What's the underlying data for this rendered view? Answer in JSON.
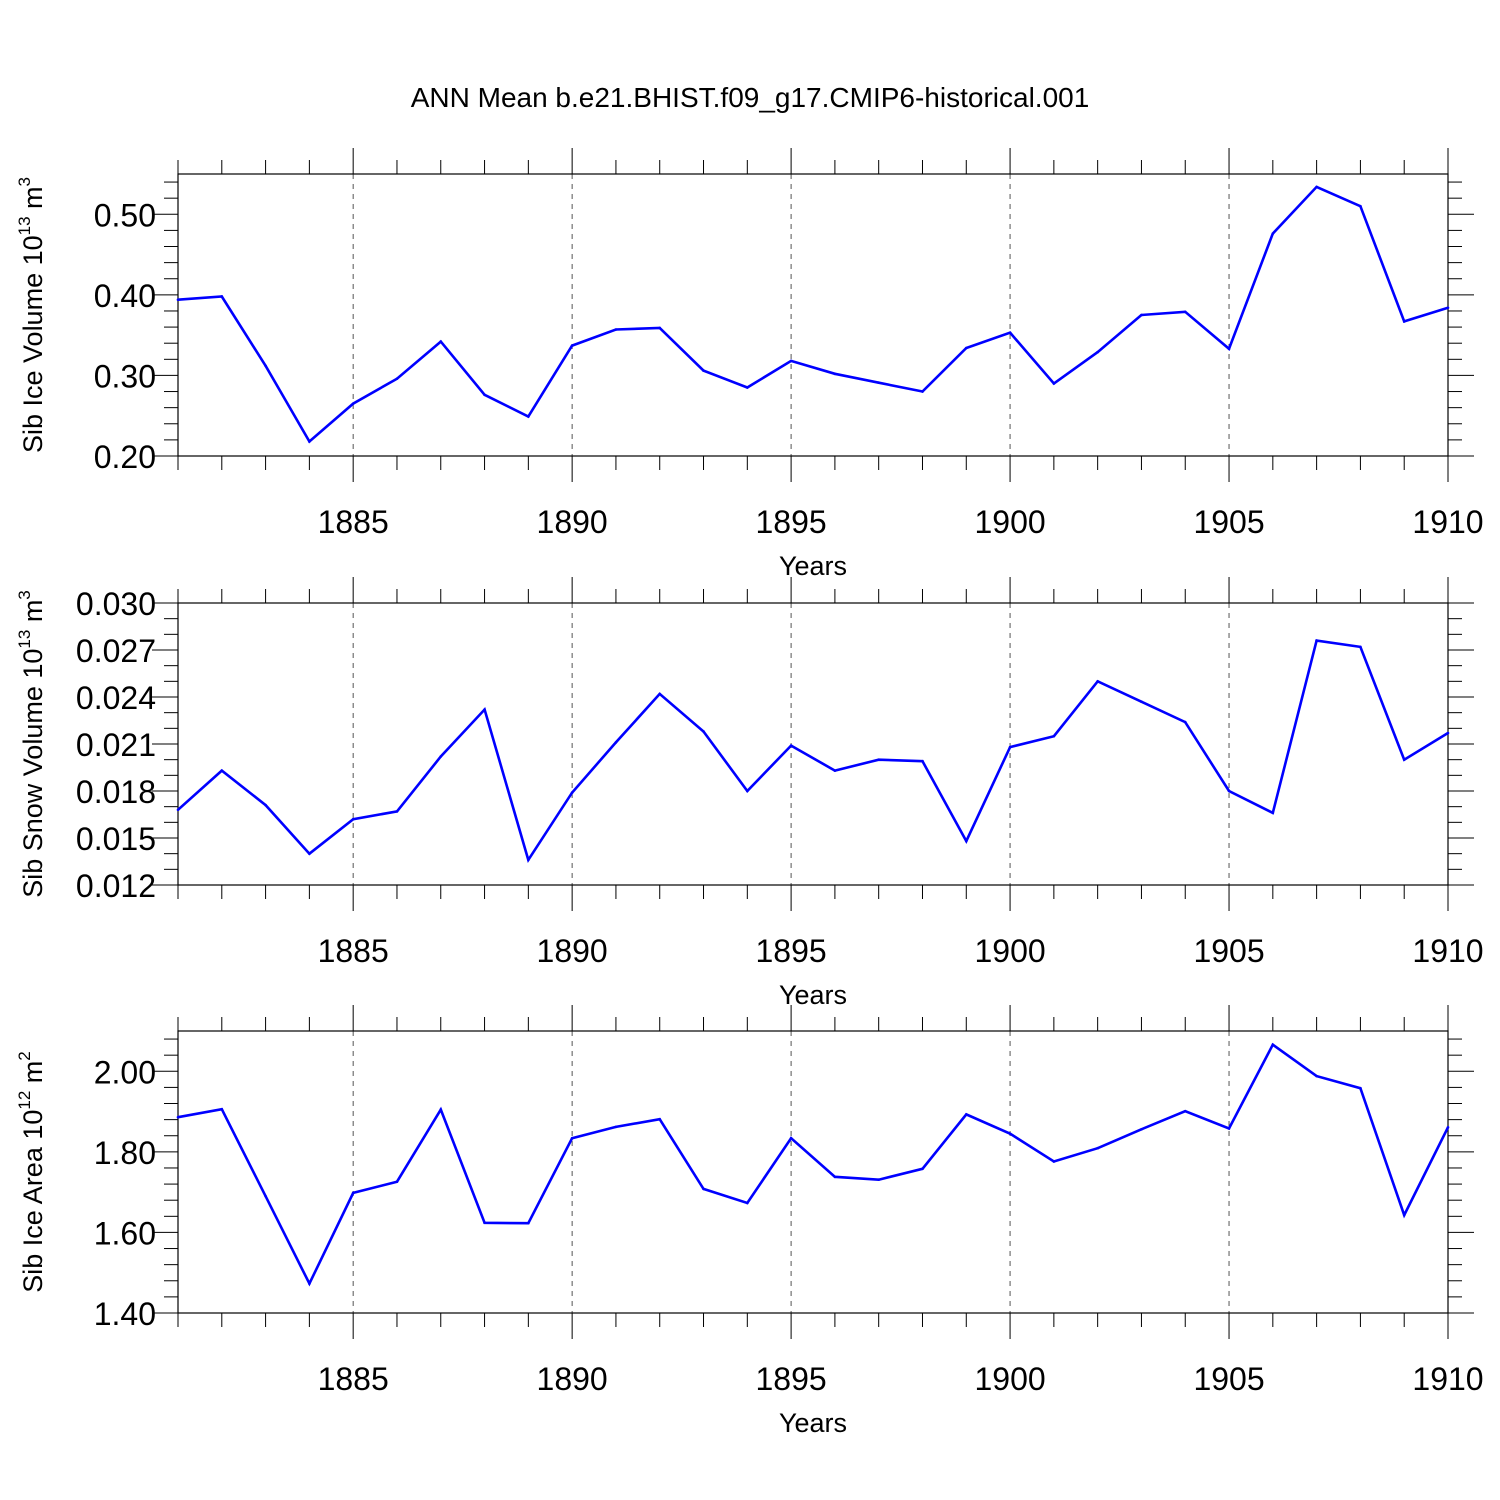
{
  "title": "ANN Mean b.e21.BHIST.f09_g17.CMIP6-historical.001",
  "colors": {
    "line": "#0000ff",
    "axis": "#000000",
    "grid": "#555555"
  },
  "chart_data": [
    {
      "type": "line",
      "ylabel": "Sib Ice Volume 10",
      "ylabel_exp": "13",
      "ylabel_unit": " m",
      "ylabel_unit_exp": "3",
      "xlabel": "Years",
      "xlim": [
        1881,
        1910
      ],
      "ylim": [
        0.2,
        0.55
      ],
      "yticks": [
        0.2,
        0.3,
        0.4,
        0.5
      ],
      "yticklabels": [
        "0.20",
        "0.30",
        "0.40",
        "0.50"
      ],
      "yminor": 0.02,
      "xticks": [
        1885,
        1890,
        1895,
        1900,
        1905,
        1910
      ],
      "xticklabels": [
        "1885",
        "1890",
        "1895",
        "1900",
        "1905",
        "1910"
      ],
      "grid": "vertical dashed at major x ticks",
      "x": [
        1881,
        1882,
        1883,
        1884,
        1885,
        1886,
        1887,
        1888,
        1889,
        1890,
        1891,
        1892,
        1893,
        1894,
        1895,
        1896,
        1897,
        1898,
        1899,
        1900,
        1901,
        1902,
        1903,
        1904,
        1905,
        1906,
        1907,
        1908,
        1909,
        1910
      ],
      "values": [
        0.394,
        0.398,
        0.312,
        0.218,
        0.265,
        0.296,
        0.342,
        0.276,
        0.249,
        0.337,
        0.357,
        0.359,
        0.306,
        0.285,
        0.318,
        0.302,
        0.291,
        0.28,
        0.334,
        0.353,
        0.29,
        0.329,
        0.375,
        0.379,
        0.333,
        0.476,
        0.534,
        0.51,
        0.367,
        0.384
      ]
    },
    {
      "type": "line",
      "ylabel": "Sib Snow Volume 10",
      "ylabel_exp": "13",
      "ylabel_unit": " m",
      "ylabel_unit_exp": "3",
      "xlabel": "Years",
      "xlim": [
        1881,
        1910
      ],
      "ylim": [
        0.012,
        0.03
      ],
      "yticks": [
        0.012,
        0.015,
        0.018,
        0.021,
        0.024,
        0.027,
        0.03
      ],
      "yticklabels": [
        "0.012",
        "0.015",
        "0.018",
        "0.021",
        "0.024",
        "0.027",
        "0.030"
      ],
      "yminor": 0.001,
      "xticks": [
        1885,
        1890,
        1895,
        1900,
        1905,
        1910
      ],
      "xticklabels": [
        "1885",
        "1890",
        "1895",
        "1900",
        "1905",
        "1910"
      ],
      "grid": "vertical dashed at major x ticks",
      "x": [
        1881,
        1882,
        1883,
        1884,
        1885,
        1886,
        1887,
        1888,
        1889,
        1890,
        1891,
        1892,
        1893,
        1894,
        1895,
        1896,
        1897,
        1898,
        1899,
        1900,
        1901,
        1902,
        1903,
        1904,
        1905,
        1906,
        1907,
        1908,
        1909,
        1910
      ],
      "values": [
        0.0168,
        0.0193,
        0.0171,
        0.014,
        0.0162,
        0.0167,
        0.0202,
        0.0232,
        0.0136,
        0.0179,
        0.0211,
        0.0242,
        0.0218,
        0.018,
        0.0209,
        0.0193,
        0.02,
        0.0199,
        0.0148,
        0.0208,
        0.0215,
        0.025,
        0.0237,
        0.0224,
        0.018,
        0.0166,
        0.0276,
        0.0272,
        0.02,
        0.0217
      ]
    },
    {
      "type": "line",
      "ylabel": "Sib Ice Area 10",
      "ylabel_exp": "12",
      "ylabel_unit": " m",
      "ylabel_unit_exp": "2",
      "xlabel": "Years",
      "xlim": [
        1881,
        1910
      ],
      "ylim": [
        1.4,
        2.1
      ],
      "yticks": [
        1.4,
        1.6,
        1.8,
        2.0
      ],
      "yticklabels": [
        "1.40",
        "1.60",
        "1.80",
        "2.00"
      ],
      "yminor": 0.04,
      "xticks": [
        1885,
        1890,
        1895,
        1900,
        1905,
        1910
      ],
      "xticklabels": [
        "1885",
        "1890",
        "1895",
        "1900",
        "1905",
        "1910"
      ],
      "grid": "vertical dashed at major x ticks",
      "x": [
        1881,
        1882,
        1883,
        1884,
        1885,
        1886,
        1887,
        1888,
        1889,
        1890,
        1891,
        1892,
        1893,
        1894,
        1895,
        1896,
        1897,
        1898,
        1899,
        1900,
        1901,
        1902,
        1903,
        1904,
        1905,
        1906,
        1907,
        1908,
        1909,
        1910
      ],
      "values": [
        1.886,
        1.906,
        1.69,
        1.473,
        1.698,
        1.726,
        1.905,
        1.624,
        1.623,
        1.834,
        1.862,
        1.881,
        1.708,
        1.673,
        1.834,
        1.738,
        1.731,
        1.758,
        1.893,
        1.845,
        1.776,
        1.809,
        1.856,
        1.901,
        1.858,
        2.066,
        1.988,
        1.958,
        1.643,
        1.861
      ]
    }
  ]
}
